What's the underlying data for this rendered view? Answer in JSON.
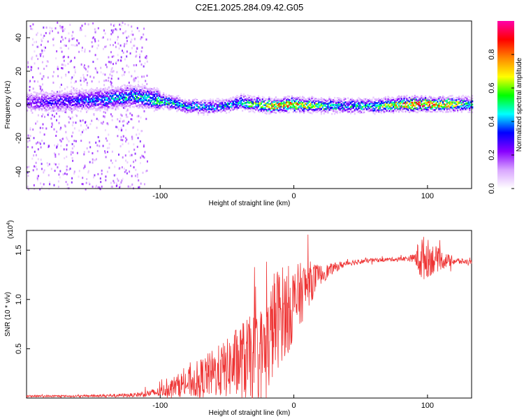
{
  "title": "C2E1.2025.284.09.42.G05",
  "chart_data": [
    {
      "type": "heatmap",
      "xlabel": "Height of straight line (km)",
      "ylabel": "Frequency (Hz)",
      "xlim": [
        -200,
        133
      ],
      "ylim": [
        -50,
        50
      ],
      "xticks": [
        -100,
        0,
        100
      ],
      "xtick_labels": [
        "-100",
        "0",
        "100"
      ],
      "yticks": [
        -40,
        -20,
        0,
        20,
        40
      ],
      "ytick_labels": [
        "-40",
        "-20",
        "0",
        "20",
        "40"
      ],
      "colorbar": {
        "label": "Normalized spectral amplitude",
        "range": [
          0,
          1
        ],
        "ticks": [
          0.0,
          0.2,
          0.4,
          0.6,
          0.8
        ],
        "tick_labels": [
          "0.0",
          "0.2",
          "0.4",
          "0.6",
          "0.8"
        ],
        "colormap": [
          "#ffffff",
          "#d9a6ff",
          "#8800ff",
          "#0000ff",
          "#00ffff",
          "#00ff00",
          "#ffff00",
          "#ff8800",
          "#ff0000",
          "#ff00aa"
        ]
      },
      "ridge": {
        "center_x": [
          -200,
          -170,
          -140,
          -120,
          -100,
          -80,
          -60,
          -40,
          -20,
          0,
          20,
          40,
          60,
          80,
          100,
          133
        ],
        "center_freq_hz": [
          2,
          3,
          4,
          6,
          3,
          0,
          -1,
          2,
          0,
          1,
          0,
          0,
          0,
          1,
          1,
          1
        ],
        "peak_amplitude": [
          0.25,
          0.35,
          0.45,
          0.5,
          0.55,
          0.5,
          0.45,
          0.5,
          0.8,
          0.95,
          0.6,
          0.5,
          0.55,
          0.9,
          0.95,
          0.55
        ]
      },
      "scatter_region_x": [
        -200,
        -110
      ]
    },
    {
      "type": "line",
      "xlabel": "Height of straight line (km)",
      "ylabel": "SNR (10 * v/v)",
      "multiplier_label": "(x10",
      "multiplier_exp": "4",
      "xlim": [
        -200,
        133
      ],
      "ylim": [
        0,
        1.7
      ],
      "xticks": [
        -100,
        0,
        100
      ],
      "xtick_labels": [
        "-100",
        "0",
        "100"
      ],
      "yticks": [
        0.5,
        1.0,
        1.5
      ],
      "ytick_labels": [
        "0.5",
        "1.0",
        "1.5"
      ],
      "color": "#ee3333",
      "envelope": {
        "x": [
          -200,
          -160,
          -120,
          -100,
          -90,
          -80,
          -70,
          -60,
          -50,
          -40,
          -30,
          -20,
          -15,
          -10,
          -5,
          0,
          10,
          20,
          30,
          40,
          60,
          80,
          90,
          95,
          100,
          110,
          120,
          133
        ],
        "mean": [
          0.02,
          0.02,
          0.03,
          0.06,
          0.12,
          0.15,
          0.2,
          0.25,
          0.3,
          0.38,
          0.4,
          0.5,
          0.75,
          0.85,
          0.9,
          0.95,
          1.15,
          1.25,
          1.32,
          1.37,
          1.4,
          1.41,
          1.42,
          1.42,
          1.42,
          1.4,
          1.39,
          1.38
        ],
        "spread": [
          0.01,
          0.01,
          0.02,
          0.05,
          0.1,
          0.15,
          0.2,
          0.25,
          0.3,
          0.4,
          0.45,
          0.5,
          0.55,
          0.5,
          0.45,
          0.4,
          0.25,
          0.1,
          0.05,
          0.03,
          0.02,
          0.02,
          0.04,
          0.25,
          0.2,
          0.1,
          0.04,
          0.02
        ]
      }
    }
  ]
}
